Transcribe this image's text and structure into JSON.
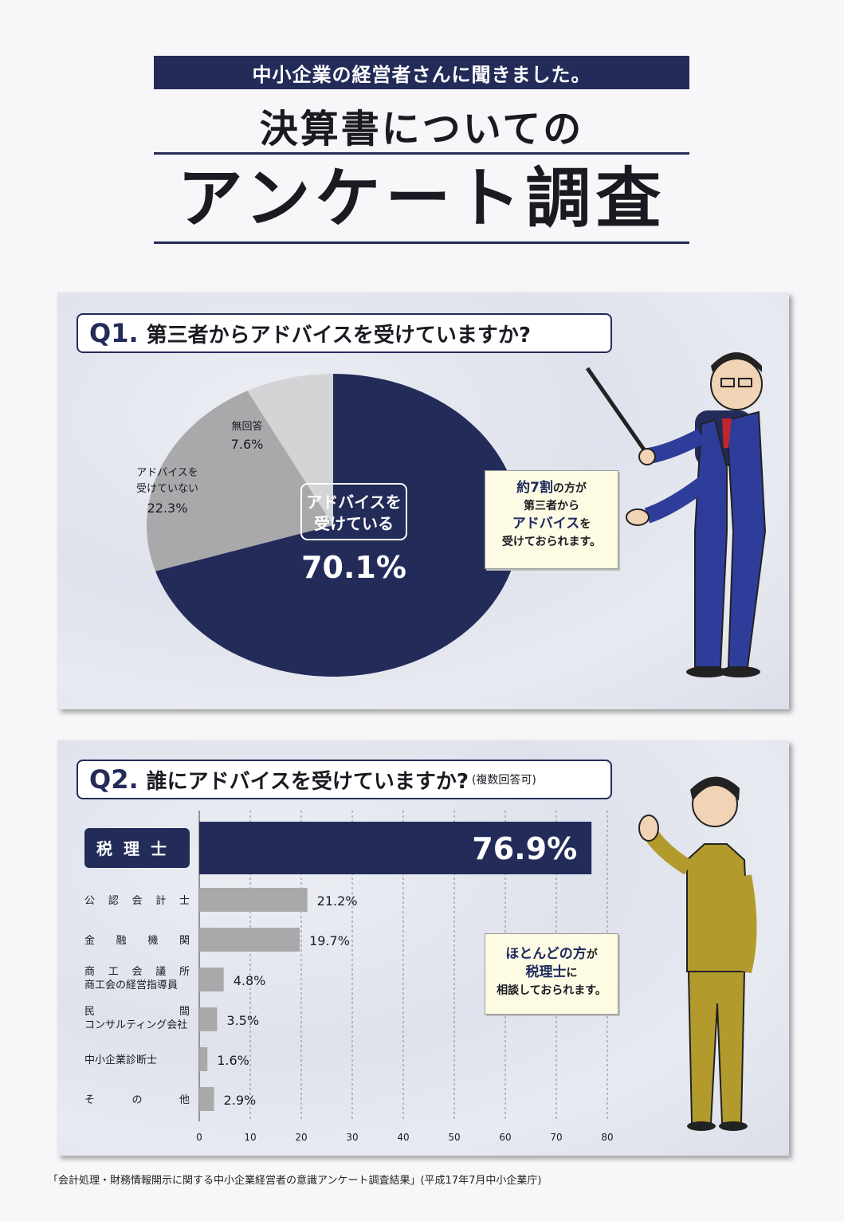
{
  "header": {
    "banner": "中小企業の経営者さんに聞きました。",
    "subtitle": "決算書についての",
    "title": "アンケート調査"
  },
  "q1": {
    "number": "Q1.",
    "question": "第三者からアドバイスを受けていますか?",
    "callout": {
      "line1_em": "約7割",
      "line1_rest": "の方が",
      "line2": "第三者から",
      "line3_em": "アドバイス",
      "line3_rest": "を",
      "line4": "受けておられます。"
    }
  },
  "q2": {
    "number": "Q2.",
    "question": "誰にアドバイスを受けていますか?",
    "note": "(複数回答可)",
    "callout": {
      "line1_em": "ほとんどの方",
      "line1_rest": "が",
      "line2_em": "税理士",
      "line2_rest": "に",
      "line3": "相談しておられます。"
    }
  },
  "chart_data": [
    {
      "type": "pie",
      "slices": [
        {
          "label": "アドバイスを受けている",
          "value": 70.1,
          "display": "70.1%",
          "color": "#232b59"
        },
        {
          "label": "アドバイスを受けていない",
          "value": 22.3,
          "display": "22.3%",
          "color": "#a9a9ab"
        },
        {
          "label": "無回答",
          "value": 7.6,
          "display": "7.6%",
          "color": "#d4d4d6"
        }
      ]
    },
    {
      "type": "bar",
      "orientation": "horizontal",
      "categories": [
        "税理士",
        "公認会計士",
        "金融機関",
        "商工会議所 商工会の経営指導員",
        "民間 コンサルティング会社",
        "中小企業診断士",
        "その他"
      ],
      "values": [
        76.9,
        21.2,
        19.7,
        4.8,
        3.5,
        1.6,
        2.9
      ],
      "display": [
        "76.9%",
        "21.2%",
        "19.7%",
        "4.8%",
        "3.5%",
        "1.6%",
        "2.9%"
      ],
      "xlim": [
        0,
        80
      ],
      "xticks": [
        "0",
        "10",
        "20",
        "30",
        "40",
        "50",
        "60",
        "70",
        "80"
      ],
      "grid": true,
      "highlight_color": "#232b59",
      "bar_color": "#a9a9ab"
    }
  ],
  "footer": {
    "source": "「会計処理・財務情報開示に関する中小企業経営者の意識アンケート調査結果」(平成17年7月中小企業庁)"
  }
}
